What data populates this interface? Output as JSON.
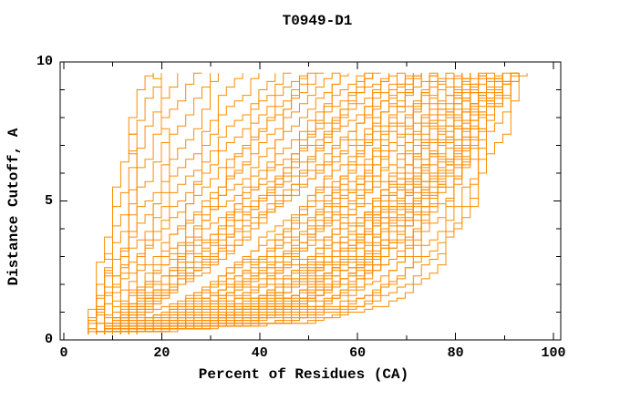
{
  "chart_data": {
    "type": "line",
    "title": "T0949-D1",
    "xlabel": "Percent of Residues (CA)",
    "ylabel": "Distance Cutoff, A",
    "xlim": [
      0,
      102
    ],
    "ylim": [
      0,
      10
    ],
    "grid": false,
    "legend": "none",
    "line_color": "#ff8c00",
    "axis_color": "#000000",
    "background_color": "#ffffff",
    "x_ticks": {
      "major": [
        0,
        20,
        40,
        60,
        80,
        100
      ],
      "minor": [
        10,
        30,
        50,
        70,
        90
      ]
    },
    "y_ticks": {
      "major": [
        0,
        5,
        10
      ],
      "minor": [
        1,
        2,
        3,
        4,
        6,
        7,
        8,
        9
      ]
    },
    "series_style": "one GDT curve per model, percent of CA residues (x) under distance cutoff (y)",
    "cutoffs": [
      0.2,
      0.6,
      1.2,
      2,
      3,
      4.5,
      6,
      8,
      9.6
    ],
    "curves": [
      [
        5,
        6,
        6,
        7,
        8,
        10,
        12,
        15,
        17
      ],
      [
        5,
        6,
        7,
        8,
        9,
        11,
        13,
        16,
        19
      ],
      [
        5,
        6,
        7,
        8,
        10,
        12,
        15,
        18,
        21
      ],
      [
        5,
        6,
        7,
        9,
        10,
        13,
        16,
        20,
        24
      ],
      [
        5,
        6,
        7,
        9,
        11,
        14,
        18,
        22,
        27
      ],
      [
        5,
        6,
        8,
        10,
        12,
        16,
        20,
        25,
        30
      ],
      [
        6,
        7,
        8,
        10,
        13,
        17,
        22,
        28,
        33
      ],
      [
        6,
        7,
        8,
        11,
        14,
        18,
        24,
        31,
        36
      ],
      [
        6,
        7,
        9,
        11,
        15,
        20,
        26,
        33,
        40
      ],
      [
        6,
        7,
        9,
        12,
        16,
        22,
        28,
        36,
        44
      ],
      [
        6,
        8,
        10,
        13,
        17,
        23,
        30,
        38,
        47
      ],
      [
        7,
        9,
        12,
        15,
        19,
        25,
        32,
        41,
        49
      ],
      [
        7,
        10,
        13,
        17,
        22,
        28,
        35,
        43,
        50
      ],
      [
        7,
        9,
        12,
        16,
        20,
        27,
        34,
        43,
        51
      ],
      [
        7,
        10,
        13,
        17,
        22,
        29,
        36,
        45,
        53
      ],
      [
        7,
        10,
        14,
        18,
        23,
        30,
        38,
        47,
        55
      ],
      [
        7,
        10,
        14,
        19,
        24,
        31,
        40,
        49,
        57
      ],
      [
        8,
        11,
        15,
        20,
        25,
        33,
        42,
        51,
        59
      ],
      [
        8,
        11,
        15,
        20,
        26,
        34,
        43,
        53,
        61
      ],
      [
        8,
        11,
        15,
        21,
        27,
        35,
        44,
        54,
        62
      ],
      [
        8,
        11,
        16,
        21,
        27,
        36,
        45,
        55,
        63
      ],
      [
        8,
        12,
        16,
        22,
        28,
        37,
        46,
        56,
        65
      ],
      [
        8,
        12,
        16,
        22,
        29,
        38,
        47,
        57,
        66
      ],
      [
        8,
        12,
        17,
        23,
        30,
        38,
        48,
        58,
        67
      ],
      [
        9,
        12,
        17,
        23,
        31,
        40,
        49,
        59,
        68
      ],
      [
        9,
        13,
        18,
        24,
        32,
        41,
        51,
        61,
        70
      ],
      [
        9,
        13,
        18,
        25,
        33,
        42,
        52,
        63,
        71
      ],
      [
        9,
        13,
        19,
        25,
        33,
        43,
        52,
        62,
        71
      ],
      [
        6,
        14,
        22,
        30,
        38,
        47,
        55,
        64,
        72
      ],
      [
        6,
        15,
        23,
        31,
        39,
        48,
        56,
        65,
        73
      ],
      [
        6,
        15,
        24,
        32,
        40,
        49,
        57,
        66,
        73
      ],
      [
        7,
        16,
        25,
        33,
        41,
        50,
        58,
        67,
        74
      ],
      [
        7,
        17,
        26,
        34,
        42,
        51,
        59,
        67,
        74
      ],
      [
        7,
        17,
        27,
        35,
        43,
        52,
        60,
        68,
        75
      ],
      [
        7,
        18,
        28,
        36,
        44,
        53,
        61,
        69,
        76
      ],
      [
        7,
        19,
        29,
        37,
        45,
        54,
        62,
        70,
        77
      ],
      [
        8,
        19,
        29,
        37,
        46,
        55,
        63,
        71,
        77
      ],
      [
        8,
        20,
        30,
        38,
        46,
        55,
        63,
        71,
        78
      ],
      [
        8,
        21,
        31,
        39,
        47,
        56,
        64,
        72,
        78
      ],
      [
        8,
        22,
        32,
        40,
        48,
        57,
        65,
        73,
        79
      ],
      [
        8,
        22,
        33,
        41,
        49,
        58,
        66,
        74,
        80
      ],
      [
        9,
        23,
        34,
        42,
        50,
        59,
        67,
        75,
        81
      ],
      [
        9,
        24,
        35,
        43,
        51,
        60,
        68,
        75,
        82
      ],
      [
        9,
        25,
        36,
        44,
        52,
        61,
        69,
        76,
        82
      ],
      [
        9,
        26,
        37,
        45,
        53,
        62,
        70,
        77,
        83
      ],
      [
        9,
        27,
        38,
        46,
        54,
        62,
        70,
        77,
        83
      ],
      [
        10,
        26,
        38,
        46,
        54,
        63,
        70,
        77,
        84
      ],
      [
        10,
        27,
        38,
        47,
        55,
        63,
        71,
        78,
        84
      ],
      [
        10,
        28,
        39,
        48,
        56,
        64,
        72,
        79,
        85
      ],
      [
        10,
        28,
        40,
        48,
        56,
        65,
        72,
        79,
        85
      ],
      [
        10,
        31,
        43,
        51,
        59,
        66,
        74,
        80,
        86
      ],
      [
        11,
        29,
        40,
        49,
        57,
        66,
        73,
        80,
        85
      ],
      [
        11,
        29,
        41,
        49,
        57,
        65,
        73,
        80,
        86
      ],
      [
        11,
        30,
        42,
        50,
        58,
        66,
        73,
        80,
        86
      ],
      [
        11,
        30,
        42,
        51,
        59,
        67,
        74,
        81,
        87
      ],
      [
        11,
        31,
        43,
        52,
        60,
        67,
        75,
        81,
        87
      ],
      [
        12,
        32,
        44,
        52,
        60,
        68,
        75,
        82,
        88
      ],
      [
        12,
        32,
        45,
        53,
        61,
        69,
        76,
        82,
        88
      ],
      [
        12,
        33,
        46,
        54,
        62,
        69,
        76,
        83,
        89
      ],
      [
        12,
        34,
        46,
        55,
        62,
        70,
        77,
        83,
        89
      ],
      [
        13,
        35,
        47,
        56,
        63,
        71,
        77,
        84,
        90
      ],
      [
        13,
        36,
        48,
        56,
        64,
        71,
        78,
        84,
        90
      ],
      [
        13,
        36,
        48,
        57,
        64,
        72,
        78,
        84,
        90
      ],
      [
        13,
        37,
        49,
        57,
        65,
        72,
        78,
        85,
        91
      ],
      [
        14,
        38,
        50,
        58,
        66,
        73,
        79,
        85,
        91
      ],
      [
        14,
        39,
        51,
        59,
        66,
        73,
        79,
        85,
        91
      ],
      [
        14,
        40,
        52,
        60,
        67,
        74,
        80,
        86,
        92
      ],
      [
        14,
        42,
        54,
        62,
        68,
        75,
        81,
        86,
        92
      ],
      [
        15,
        44,
        56,
        63,
        70,
        76,
        81,
        87,
        93
      ],
      [
        15,
        46,
        58,
        65,
        71,
        77,
        82,
        87,
        93
      ],
      [
        10,
        46,
        60,
        68,
        73,
        78,
        82,
        87,
        91
      ],
      [
        11,
        49,
        63,
        71,
        76,
        80,
        84,
        88,
        92
      ],
      [
        12,
        52,
        66,
        73,
        78,
        82,
        85,
        89,
        93
      ],
      [
        11,
        44,
        58,
        67,
        75,
        82,
        86,
        91,
        95
      ],
      [
        8,
        38,
        52,
        61,
        68,
        74,
        79,
        84,
        89
      ],
      [
        7,
        34,
        47,
        56,
        64,
        70,
        76,
        82,
        87
      ]
    ]
  }
}
